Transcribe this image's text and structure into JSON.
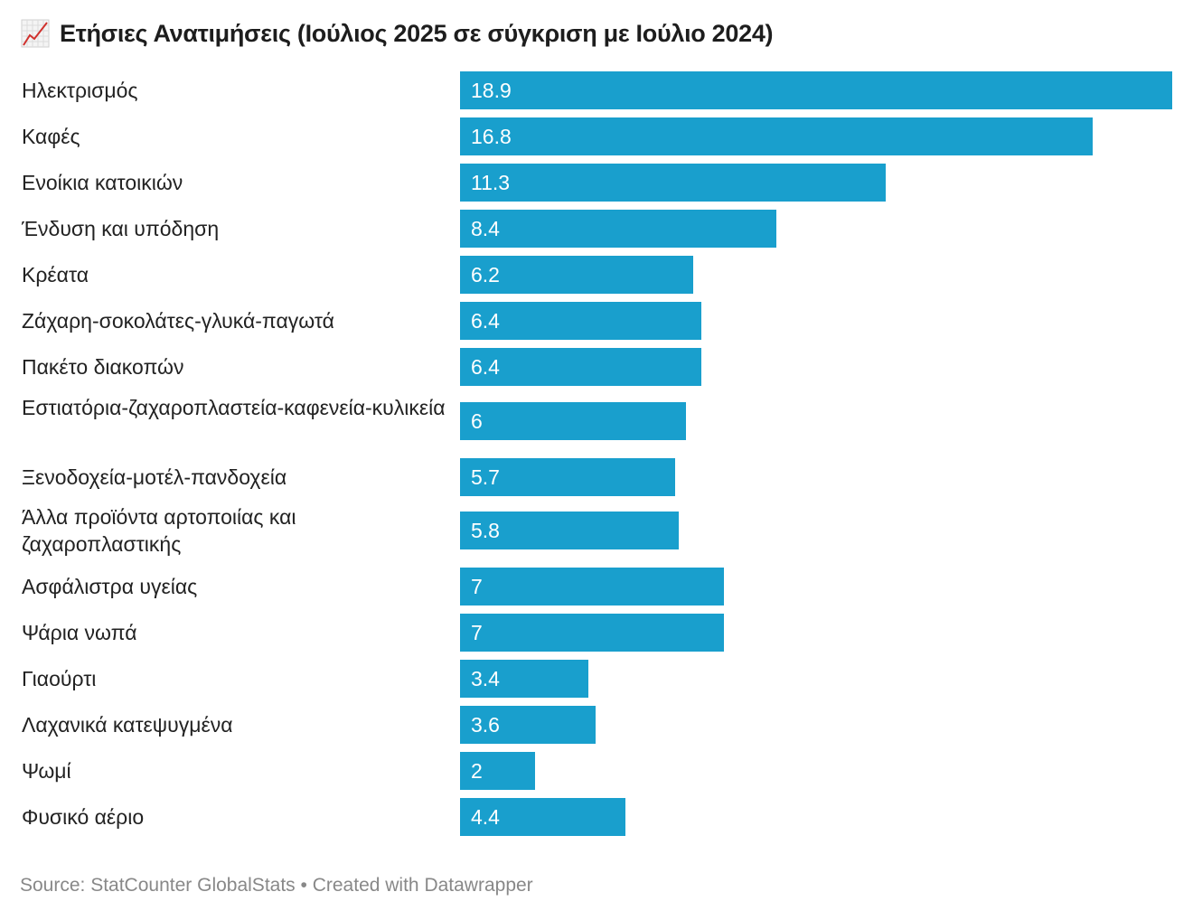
{
  "title": "Ετήσιες Ανατιμήσεις (Ιούλιος 2025 σε σύγκριση με Ιούλιο 2024)",
  "title_icon": "chart-increasing-icon",
  "footer": {
    "source": "Source: StatCounter GlobalStats",
    "separator": "•",
    "credit": "Created with Datawrapper"
  },
  "colors": {
    "bar": "#199fcd",
    "label": "#222222",
    "footer": "#888888"
  },
  "chart_data": {
    "type": "bar",
    "orientation": "horizontal",
    "title": "Ετήσιες Ανατιμήσεις (Ιούλιος 2025 σε σύγκριση με Ιούλιο 2024)",
    "xlabel": "",
    "ylabel": "",
    "xlim": [
      0,
      18.9
    ],
    "grid": false,
    "categories": [
      "Ηλεκτρισμός",
      "Καφές",
      "Ενοίκια κατοικιών",
      "Ένδυση και υπόδηση",
      "Κρέατα",
      "Ζάχαρη-σοκολάτες-γλυκά-παγωτά",
      "Πακέτο διακοπών",
      "Εστιατόρια-ζαχαροπλαστεία-καφενεία-κυλικεία",
      "Ξενοδοχεία-μοτέλ-πανδοχεία",
      "Άλλα προϊόντα αρτοποιίας και ζαχαροπλαστικής",
      "Ασφάλιστρα υγείας",
      "Ψάρια νωπά",
      "Γιαούρτι",
      "Λαχανικά κατεψυγμένα",
      "Ψωμί",
      "Φυσικό αέριο"
    ],
    "values": [
      18.9,
      16.8,
      11.3,
      8.4,
      6.2,
      6.4,
      6.4,
      6,
      5.7,
      5.8,
      7,
      7,
      3.4,
      3.6,
      2,
      4.4
    ],
    "value_labels": [
      "18.9",
      "16.8",
      "11.3",
      "8.4",
      "6.2",
      "6.4",
      "6.4",
      "6",
      "5.7",
      "5.8",
      "7",
      "7",
      "3.4",
      "3.6",
      "2",
      "4.4"
    ]
  }
}
